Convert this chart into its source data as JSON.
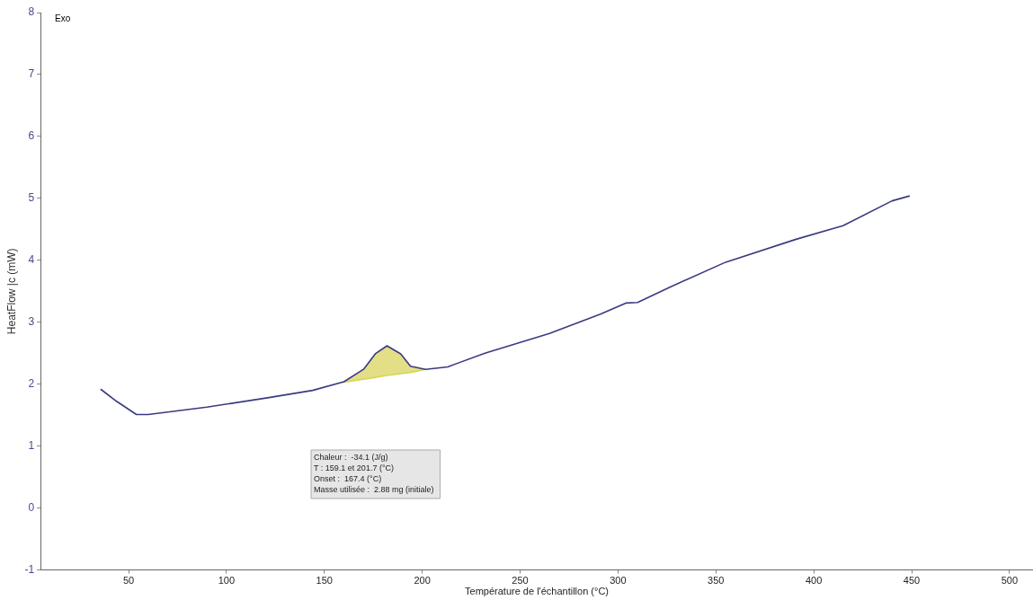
{
  "chart_data": {
    "type": "line",
    "xlabel": "Température de l'échantillon (°C)",
    "ylabel": "HeatFlow |c (mW)",
    "xlim": [
      5,
      512
    ],
    "xticks": [
      50,
      100,
      150,
      200,
      250,
      300,
      350,
      400,
      450,
      500
    ],
    "ylim": [
      -1,
      8
    ],
    "yticks": [
      -1,
      0,
      1,
      2,
      3,
      4,
      5,
      6,
      7,
      8
    ],
    "grid": false,
    "legend": false,
    "marker": "none",
    "line_style": "solid",
    "annotations": [
      "Exo",
      "Chaleur :  -34.1 (J/g)",
      "T : 159.1 et 201.7 (°C)",
      "Onset :  167.4 (°C)",
      "Masse utilisée :  2.88 mg (initiale)"
    ],
    "series": [
      {
        "color": "#3a3a80",
        "x": [
          35.7,
          44,
          54,
          60,
          90,
          121,
          144,
          160,
          170,
          176,
          182,
          189,
          194,
          201.7,
          213,
          232,
          265,
          291,
          304,
          310,
          326,
          355,
          391,
          415,
          440,
          449
        ],
        "values": [
          1.92,
          1.72,
          1.51,
          1.51,
          1.63,
          1.78,
          1.9,
          2.04,
          2.24,
          2.49,
          2.62,
          2.49,
          2.29,
          2.24,
          2.28,
          2.5,
          2.82,
          3.13,
          3.31,
          3.32,
          3.56,
          3.97,
          4.34,
          4.56,
          4.96,
          5.04
        ]
      },
      {
        "type": "line",
        "color": "#d8d45a",
        "x": [
          159.1,
          170,
          176,
          182,
          189,
          194,
          201.7
        ],
        "values": [
          2.03,
          2.08,
          2.11,
          2.14,
          2.17,
          2.19,
          2.24
        ],
        "lower": [
          2.03,
          2.08,
          2.11,
          2.14,
          2.17,
          2.19,
          2.24
        ],
        "upper": [
          2.03,
          2.24,
          2.49,
          2.62,
          2.49,
          2.29,
          2.24
        ]
      }
    ]
  }
}
